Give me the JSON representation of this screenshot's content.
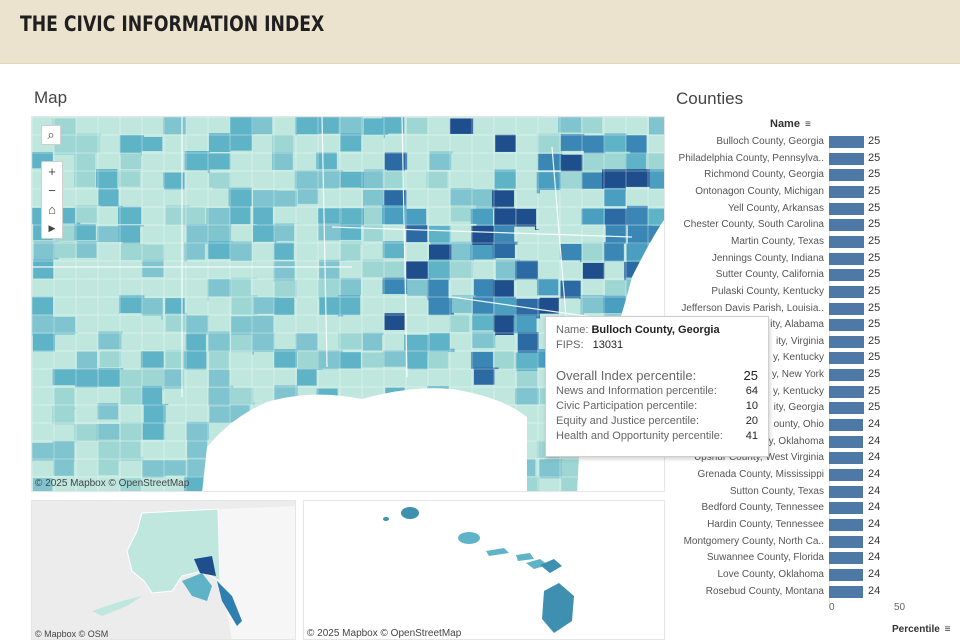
{
  "header": {
    "title": "THE CIVIC INFORMATION INDEX"
  },
  "sections": {
    "map_title": "Map",
    "counties_title": "Counties"
  },
  "map": {
    "attribution_main": "© 2025 Mapbox  © OpenStreetMap",
    "attribution_alaska": "© Mapbox  © OSM",
    "attribution_hawaii": "© 2025 Mapbox  © OpenStreetMap",
    "controls": [
      "search-icon",
      "zoom-in-icon",
      "zoom-out-icon",
      "home-icon",
      "play-icon"
    ]
  },
  "tooltip": {
    "name_label": "Name:",
    "name_value": "Bulloch County, Georgia",
    "fips_label": "FIPS:",
    "fips_value": "13031",
    "overall_label": "Overall Index percentile:",
    "overall_value": "25",
    "metrics": [
      {
        "label": "News and Information percentile:",
        "value": "64"
      },
      {
        "label": "Civic Participation  percentile:",
        "value": "10"
      },
      {
        "label": "Equity and Justice percentile:",
        "value": "20"
      },
      {
        "label": "Health and Opportunity percentile:",
        "value": "41"
      }
    ]
  },
  "counties": {
    "column_header": "Name",
    "axis_title": "Percentile",
    "axis_ticks": [
      "0",
      "50"
    ],
    "rows": [
      {
        "name": "Bulloch County, Georgia",
        "value": 25
      },
      {
        "name": "Philadelphia County, Pennsylva..",
        "value": 25
      },
      {
        "name": "Richmond County, Georgia",
        "value": 25
      },
      {
        "name": "Ontonagon County, Michigan",
        "value": 25
      },
      {
        "name": "Yell County, Arkansas",
        "value": 25
      },
      {
        "name": "Chester County, South Carolina",
        "value": 25
      },
      {
        "name": "Martin County, Texas",
        "value": 25
      },
      {
        "name": "Jennings County, Indiana",
        "value": 25
      },
      {
        "name": "Sutter County, California",
        "value": 25
      },
      {
        "name": "Pulaski County, Kentucky",
        "value": 25
      },
      {
        "name": "Jefferson Davis Parish, Louisia..",
        "value": 25
      },
      {
        "name": "ity, Alabama",
        "value": 25
      },
      {
        "name": "ity, Virginia",
        "value": 25
      },
      {
        "name": "y, Kentucky",
        "value": 25
      },
      {
        "name": "y, New York",
        "value": 25
      },
      {
        "name": "y, Kentucky",
        "value": 25
      },
      {
        "name": "ity, Georgia",
        "value": 25
      },
      {
        "name": "ounty, Ohio",
        "value": 24
      },
      {
        "name": "y, Oklahoma",
        "value": 24
      },
      {
        "name": "Upshur County, West Virginia",
        "value": 24
      },
      {
        "name": "Grenada County, Mississippi",
        "value": 24
      },
      {
        "name": "Sutton County, Texas",
        "value": 24
      },
      {
        "name": "Bedford County, Tennessee",
        "value": 24
      },
      {
        "name": "Hardin County, Tennessee",
        "value": 24
      },
      {
        "name": "Montgomery County, North Ca..",
        "value": 24
      },
      {
        "name": "Suwannee County, Florida",
        "value": 24
      },
      {
        "name": "Love County, Oklahoma",
        "value": 24
      },
      {
        "name": "Rosebud County, Montana",
        "value": 24
      }
    ]
  },
  "colors": {
    "bar": "#4e79a7",
    "choropleth_light": "#bfe7de",
    "choropleth_mid": "#5fb3c7",
    "choropleth_dark": "#1f4e8c",
    "header_bg": "#ece3cf"
  }
}
